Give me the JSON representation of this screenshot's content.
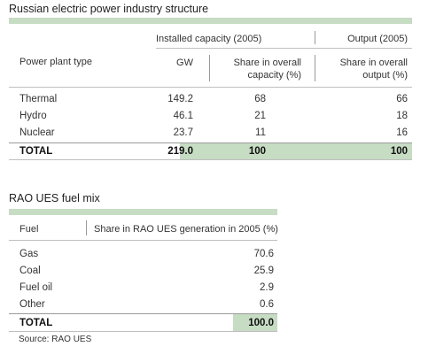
{
  "table1": {
    "title": "Russian electric power industry structure",
    "group_headers": {
      "capacity": "Installed capacity (2005)",
      "output": "Output (2005)"
    },
    "col_headers": {
      "type": "Power plant type",
      "gw": "GW",
      "cap_share": [
        "Share in overall",
        "capacity (%)"
      ],
      "out_share": [
        "Share in overall",
        "output (%)"
      ]
    },
    "rows": [
      {
        "type": "Thermal",
        "gw": "149.2",
        "cap_share": "68",
        "out_share": "66"
      },
      {
        "type": "Hydro",
        "gw": "46.1",
        "cap_share": "21",
        "out_share": "18"
      },
      {
        "type": "Nuclear",
        "gw": "23.7",
        "cap_share": "11",
        "out_share": "16"
      }
    ],
    "total": {
      "type": "TOTAL",
      "gw": "219.0",
      "cap_share": "100",
      "out_share": "100"
    }
  },
  "table2": {
    "title": "RAO UES fuel mix",
    "col_headers": {
      "fuel": "Fuel",
      "share": "Share in RAO UES generation in 2005 (%)"
    },
    "rows": [
      {
        "fuel": "Gas",
        "share": "70.6"
      },
      {
        "fuel": "Coal",
        "share": "25.9"
      },
      {
        "fuel": "Fuel oil",
        "share": "2.9"
      },
      {
        "fuel": "Other",
        "share": "0.6"
      }
    ],
    "total": {
      "fuel": "TOTAL",
      "share": "100.0"
    }
  },
  "source": "Source: RAO UES",
  "colors": {
    "accent_green": "#c6dcc3",
    "text": "#2b2b2b"
  }
}
